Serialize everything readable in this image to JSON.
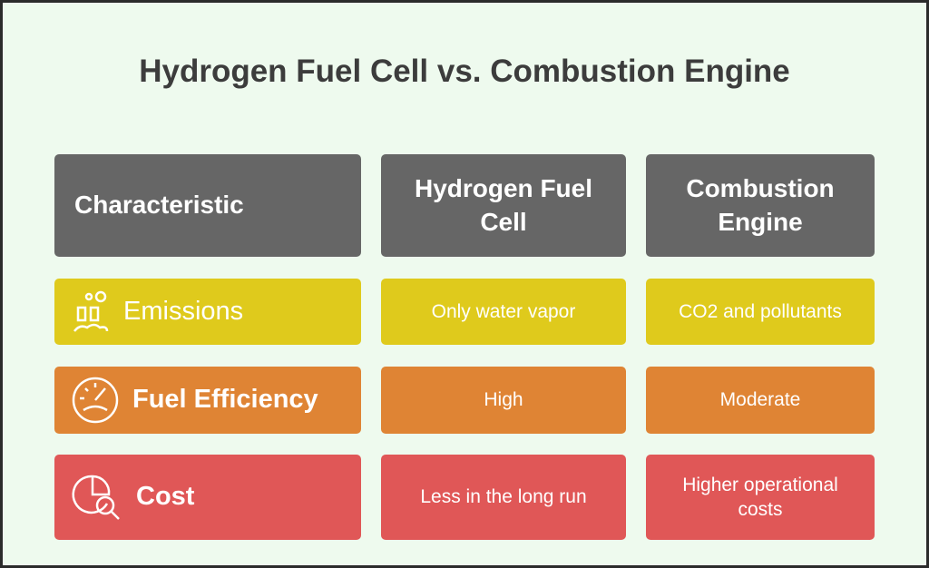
{
  "title": "Hydrogen Fuel Cell vs. Combustion Engine",
  "table": {
    "header": [
      "Characteristic",
      "Hydrogen Fuel Cell",
      "Combustion Engine"
    ],
    "rows": [
      [
        "Emissions",
        "Only water vapor",
        "CO2 and pollutants"
      ],
      [
        "Fuel Efficiency",
        "High",
        "Moderate"
      ],
      [
        "Cost",
        "Less in the long run",
        "Higher operational costs"
      ]
    ]
  }
}
